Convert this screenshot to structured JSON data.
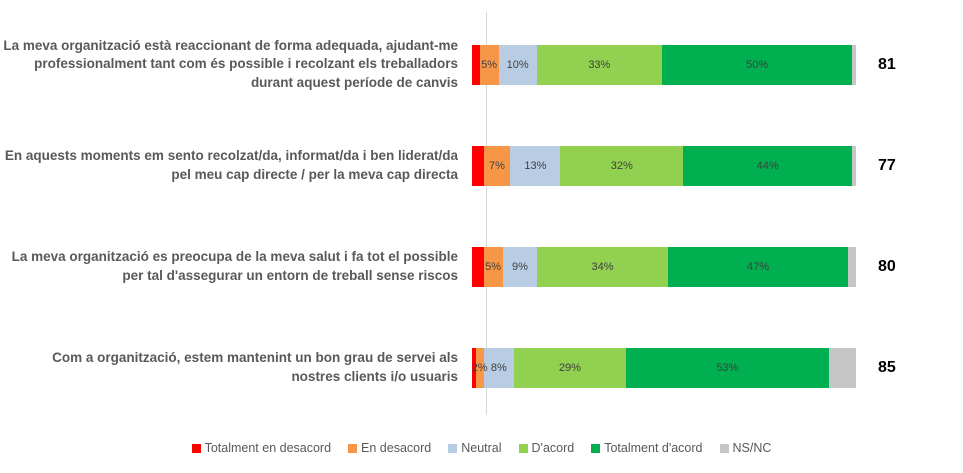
{
  "chart_data": {
    "type": "bar",
    "subtype": "horizontal_stacked_percent",
    "title": "",
    "categories": [
      "La meva organització està reaccionant de forma adequada, ajudant-me professionalment tant com és possible i recolzant els treballadors durant aquest període de canvis",
      "En aquests moments em sento recolzat/da, informat/da i ben liderat/da pel meu cap directe / per la meva cap directa",
      "La meva organització es preocupa de la meva salut i fa tot el possible per tal d'assegurar un entorn de treball sense riscos",
      "Com a organització, estem mantenint un bon grau de servei als nostres clients i/o usuaris"
    ],
    "scores": [
      81,
      77,
      80,
      85
    ],
    "series": [
      {
        "name": "Totalment en desacord",
        "color": "#FF0000",
        "values": [
          2,
          3,
          3,
          1
        ],
        "labels": [
          "",
          "",
          "",
          ""
        ]
      },
      {
        "name": "En desacord",
        "color": "#F79646",
        "values": [
          5,
          7,
          5,
          2
        ],
        "labels": [
          "5%",
          "7%",
          "5%",
          "2%"
        ]
      },
      {
        "name": "Neutral",
        "color": "#B8CCE4",
        "values": [
          10,
          13,
          9,
          8
        ],
        "labels": [
          "10%",
          "13%",
          "9%",
          "8%"
        ]
      },
      {
        "name": "D'acord",
        "color": "#92D050",
        "values": [
          33,
          32,
          34,
          29
        ],
        "labels": [
          "33%",
          "32%",
          "34%",
          "29%"
        ]
      },
      {
        "name": "Totalment d'acord",
        "color": "#00B050",
        "values": [
          50,
          44,
          47,
          53
        ],
        "labels": [
          "50%",
          "44%",
          "47%",
          "53%"
        ]
      },
      {
        "name": "NS/NC",
        "color": "#C6C6C6",
        "values": [
          1,
          1,
          2,
          7
        ],
        "labels": [
          "",
          "",
          "",
          ""
        ]
      }
    ],
    "xlim": [
      0,
      100
    ],
    "grid": false,
    "legend_position": "bottom",
    "colors": {
      "background": "#FFFFFF",
      "axis_line": "#D9D9D9",
      "category_label": "#595959",
      "segment_label": "#404040",
      "score_label": "#000000",
      "legend_label": "#595959"
    }
  }
}
